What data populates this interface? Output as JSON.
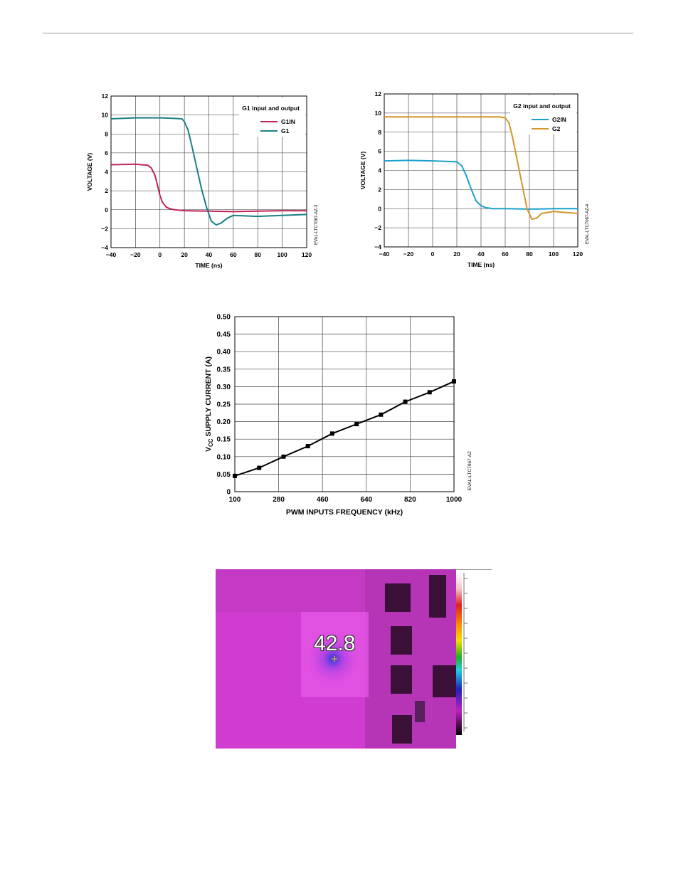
{
  "chart_data": [
    {
      "type": "line",
      "title": "G1 input and output",
      "xlabel": "TIME (ns)",
      "ylabel": "VOLTAGE (V)",
      "xlim": [
        -40,
        120
      ],
      "ylim": [
        -4,
        12
      ],
      "x_ticks": [
        "−40",
        "−20",
        "0",
        "20",
        "40",
        "60",
        "80",
        "100",
        "120"
      ],
      "y_ticks": [
        "−4",
        "−2",
        "0",
        "2",
        "4",
        "6",
        "8",
        "10",
        "12"
      ],
      "grid": true,
      "legend": "top-right",
      "side_label": "EVAL-LTC7067-AZ-3",
      "series": [
        {
          "name": "G1IN",
          "color": "#c0245a",
          "x": [
            -40,
            -20,
            -10,
            -7,
            -4,
            -2,
            0,
            2,
            5,
            8,
            12,
            20,
            40,
            60,
            80,
            100,
            120
          ],
          "y": [
            4.75,
            4.8,
            4.7,
            4.4,
            3.6,
            2.6,
            1.5,
            0.8,
            0.3,
            0.1,
            0.0,
            -0.1,
            -0.15,
            -0.2,
            -0.15,
            -0.1,
            -0.1
          ]
        },
        {
          "name": "G1",
          "color": "#1a7f86",
          "x": [
            -40,
            -20,
            0,
            10,
            18,
            20,
            23,
            26,
            30,
            34,
            38,
            42,
            46,
            50,
            55,
            60,
            80,
            100,
            120
          ],
          "y": [
            9.6,
            9.7,
            9.7,
            9.65,
            9.6,
            9.3,
            8.4,
            6.8,
            4.5,
            2.2,
            0.3,
            -1.2,
            -1.6,
            -1.4,
            -0.9,
            -0.6,
            -0.7,
            -0.6,
            -0.5
          ]
        }
      ]
    },
    {
      "type": "line",
      "title": "G2 input and output",
      "xlabel": "TIME (ns)",
      "ylabel": "VOLTAGE (V)",
      "xlim": [
        -40,
        120
      ],
      "ylim": [
        -4,
        12
      ],
      "x_ticks": [
        "−40",
        "−20",
        "0",
        "20",
        "40",
        "60",
        "80",
        "100",
        "120"
      ],
      "y_ticks": [
        "−4",
        "−2",
        "0",
        "2",
        "4",
        "6",
        "8",
        "10",
        "12"
      ],
      "grid": true,
      "legend": "top-right",
      "side_label": "EVAL-LTC7067-AZ-4",
      "series": [
        {
          "name": "G2IN",
          "color": "#1aa0cc",
          "x": [
            -40,
            -20,
            0,
            10,
            20,
            24,
            28,
            32,
            36,
            40,
            44,
            50,
            60,
            80,
            100,
            120
          ],
          "y": [
            5.0,
            5.05,
            5.0,
            4.95,
            4.9,
            4.5,
            3.4,
            2.0,
            0.8,
            0.3,
            0.1,
            0.0,
            0.0,
            -0.05,
            0.0,
            0.0
          ]
        },
        {
          "name": "G2",
          "color": "#d4952a",
          "x": [
            -40,
            -20,
            0,
            20,
            40,
            55,
            60,
            63,
            66,
            70,
            74,
            78,
            82,
            86,
            90,
            100,
            120
          ],
          "y": [
            9.6,
            9.6,
            9.6,
            9.6,
            9.6,
            9.6,
            9.5,
            9.0,
            7.5,
            5.0,
            2.5,
            0.0,
            -1.1,
            -1.0,
            -0.5,
            -0.3,
            -0.5
          ]
        }
      ]
    },
    {
      "type": "line",
      "title": "",
      "xlabel": "PWM INPUTS FREQUENCY (kHz)",
      "ylabel_main": "V",
      "ylabel_sub": "CC",
      "ylabel_rest": " SUPPLY CURRENT  (A)",
      "xlim": [
        100,
        1000
      ],
      "ylim": [
        0,
        0.5
      ],
      "x_ticks": [
        "100",
        "280",
        "460",
        "640",
        "820",
        "1000"
      ],
      "y_ticks": [
        "0",
        "0.05",
        "0.10",
        "0.15",
        "0.20",
        "0.25",
        "0.30",
        "0.35",
        "0.40",
        "0.45",
        "0.50"
      ],
      "grid": true,
      "side_label": "EVAL-LTC7067-AZ",
      "series": [
        {
          "name": "",
          "color": "#000000",
          "x": [
            100,
            200,
            300,
            400,
            500,
            600,
            700,
            800,
            900,
            1000
          ],
          "y": [
            0.045,
            0.068,
            0.1,
            0.13,
            0.166,
            0.193,
            0.22,
            0.257,
            0.284,
            0.315
          ]
        }
      ]
    }
  ],
  "thermal_image": {
    "reading": "42.8"
  }
}
